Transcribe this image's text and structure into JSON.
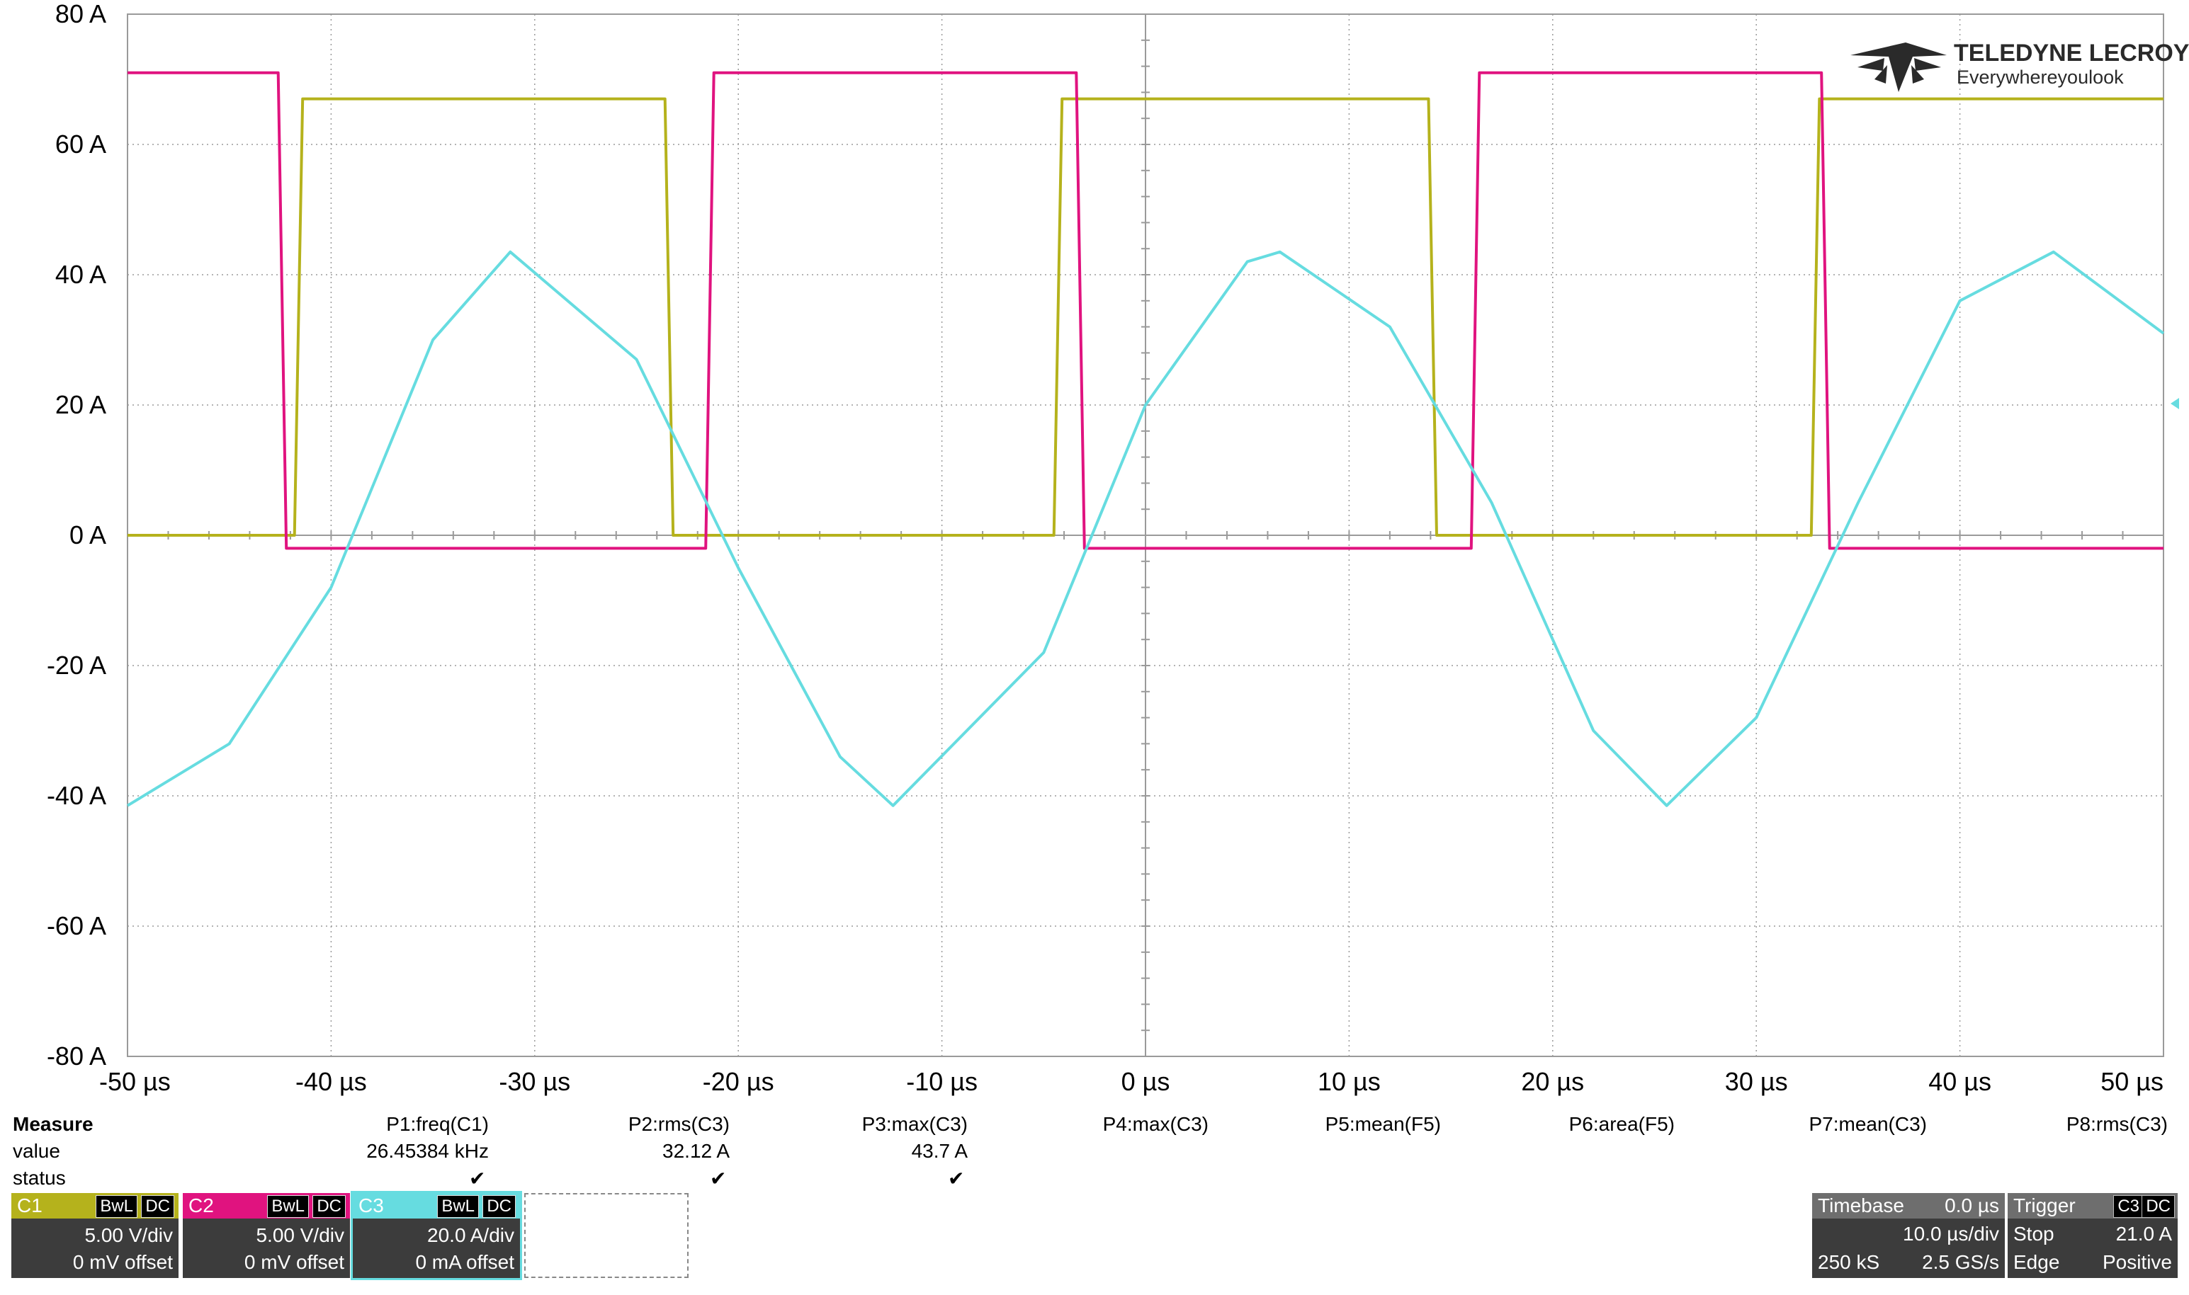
{
  "logo": {
    "brand": "TELEDYNE LECROY",
    "tagline": "Everywhereyoulook"
  },
  "colors": {
    "C1": "#b5b21c",
    "C2": "#e0137f",
    "C3": "#66dce0",
    "grid": "#9a9a9a",
    "frame": "#9a9a9a"
  },
  "chart_data": {
    "type": "line",
    "xlabel": "",
    "ylabel": "",
    "xlim": [
      -50,
      50
    ],
    "ylim": [
      -80,
      80
    ],
    "x_ticks": [
      "-50 µs",
      "-40 µs",
      "-30 µs",
      "-20 µs",
      "-10 µs",
      "0 µs",
      "10 µs",
      "20 µs",
      "30 µs",
      "40 µs",
      "50 µs"
    ],
    "y_ticks": [
      "80 A",
      "60 A",
      "40 A",
      "20 A",
      "0 A",
      "-20 A",
      "-40 A",
      "-60 A",
      "-80 A"
    ],
    "grid": true,
    "series": [
      {
        "name": "C1",
        "color": "#b5b21c",
        "x": [
          -50,
          -41.8,
          -41.4,
          -23.6,
          -23.2,
          -4.5,
          -4.1,
          13.9,
          14.3,
          32.7,
          33.1,
          50
        ],
        "y": [
          0,
          0,
          67,
          67,
          0,
          0,
          67,
          67,
          0,
          0,
          67,
          67
        ]
      },
      {
        "name": "C2",
        "color": "#e0137f",
        "x": [
          -50,
          -42.6,
          -42.2,
          -21.6,
          -21.2,
          -3.4,
          -3.0,
          16.0,
          16.4,
          33.2,
          33.6,
          50
        ],
        "y": [
          71,
          71,
          -2,
          -2,
          71,
          71,
          -2,
          -2,
          71,
          71,
          -2,
          -2
        ]
      },
      {
        "name": "C3",
        "color": "#66dce0",
        "x": [
          -50,
          -45,
          -40,
          -35,
          -31.2,
          -25,
          -20,
          -15,
          -12.4,
          -5,
          0,
          5,
          6.6,
          12,
          17,
          22,
          25.6,
          30,
          35,
          40,
          44.6,
          50
        ],
        "y": [
          -41.5,
          -32,
          -8,
          30,
          43.5,
          27,
          -5,
          -34,
          -41.5,
          -18,
          20,
          42,
          43.5,
          32,
          5,
          -30,
          -41.5,
          -28,
          5,
          36,
          43.5,
          31
        ]
      }
    ]
  },
  "measure": {
    "title": "Measure",
    "row_value": "value",
    "row_status": "status",
    "params": [
      {
        "label": "P1:freq(C1)",
        "value": "26.45384 kHz",
        "ok": true
      },
      {
        "label": "P2:rms(C3)",
        "value": "32.12 A",
        "ok": true
      },
      {
        "label": "P3:max(C3)",
        "value": "43.7 A",
        "ok": true
      },
      {
        "label": "P4:max(C3)",
        "value": "",
        "ok": false
      },
      {
        "label": "P5:mean(F5)",
        "value": "",
        "ok": false
      },
      {
        "label": "P6:area(F5)",
        "value": "",
        "ok": false
      },
      {
        "label": "P7:mean(C3)",
        "value": "",
        "ok": false
      },
      {
        "label": "P8:rms(C3)",
        "value": "",
        "ok": false
      }
    ]
  },
  "channels": [
    {
      "name": "C1",
      "bw": "BwL",
      "coupling": "DC",
      "vdiv": "5.00 V/div",
      "offset": "0 mV offset",
      "color": "#b5b21c"
    },
    {
      "name": "C2",
      "bw": "BwL",
      "coupling": "DC",
      "vdiv": "5.00 V/div",
      "offset": "0 mV offset",
      "color": "#e0137f"
    },
    {
      "name": "C3",
      "bw": "BwL",
      "coupling": "DC",
      "vdiv": "20.0 A/div",
      "offset": "0 mA offset",
      "color": "#66dce0"
    }
  ],
  "timebase": {
    "label": "Timebase",
    "delay": "0.0 µs",
    "tdiv": "10.0 µs/div",
    "samples": "250 kS",
    "rate": "2.5 GS/s"
  },
  "trigger": {
    "label": "Trigger",
    "source": "C3",
    "coupling": "DC",
    "mode": "Stop",
    "level": "21.0 A",
    "type": "Edge",
    "slope": "Positive"
  }
}
